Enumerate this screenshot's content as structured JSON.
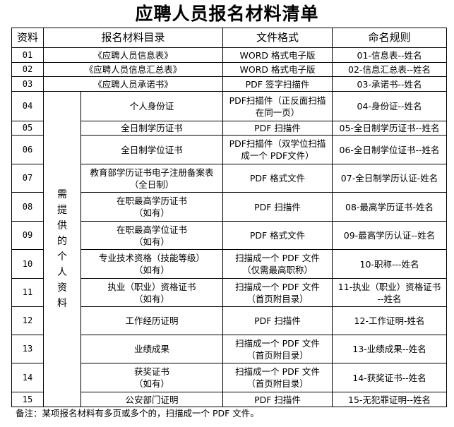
{
  "title": "应聘人员报名材料清单",
  "headers": [
    "资料",
    "报名材料目录",
    "文件格式",
    "命名规则"
  ],
  "group_label": "需\n提\n供\n的\n个\n人\n资\n料",
  "top_rows": [
    {
      "no": "01",
      "item": "《应聘人员信息表》",
      "format": "WORD 格式电子版",
      "naming": "01-信息表--姓名"
    },
    {
      "no": "02",
      "item": "《应聘人员信息汇总表》",
      "format": "WORD 格式电子版",
      "naming": "02-信息汇总表--姓名"
    },
    {
      "no": "03",
      "item": "《应聘人员承诺书》",
      "format": "PDF 签字扫描件",
      "naming": "03-承诺书--姓名"
    }
  ],
  "rows": [
    {
      "no": "04",
      "item": "个人身份证",
      "format": "PDF扫描件（正反面扫描\n在同一页）",
      "naming": "04-身份证--姓名"
    },
    {
      "no": "05",
      "item": "全日制学历证书",
      "format": "PDF 扫描件",
      "naming": "05-全日制学历证书--姓名"
    },
    {
      "no": "06",
      "item": "全日制学位证书",
      "format": "PDF扫描件（双学位扫描\n成一个 PDF文件）",
      "naming": "06-全日制学位证书--姓名"
    },
    {
      "no": "07",
      "item": "教育部学历证书电子注册备案表\n（全日制）",
      "format": "PDF 格式文件",
      "naming": "07-全日制学历认证-姓名"
    },
    {
      "no": "08",
      "item": "在职最高学历证书\n（如有）",
      "format": "PDF 扫描件",
      "naming": "08-最高学历证书-姓名"
    },
    {
      "no": "09",
      "item": "在职最高学位证书\n（如有）",
      "format": "PDF 格式文件",
      "naming": "09-最高学历认证--姓名"
    },
    {
      "no": "10",
      "item": "专业技术资格（技能等级）\n（如有）",
      "format": "扫描成一个 PDF 文件\n（仅需最高职称）",
      "naming": "10-职称---姓名"
    },
    {
      "no": "11",
      "item": "执业（职业）资格证书\n（如有）",
      "format": "扫描成一个 PDF 文件\n（首页附目录）",
      "naming": "11-执业（职业）资格证书\n--姓名"
    },
    {
      "no": "12",
      "item": "工作经历证明",
      "format": "PDF 扫描件",
      "naming": "12-工作证明-姓名"
    },
    {
      "no": "13",
      "item": "业绩成果",
      "format": "扫描成一个 PDF 文件\n（首页附目录）",
      "naming": "13-业绩成果--姓名"
    },
    {
      "no": "14",
      "item": "获奖证书\n（如有）",
      "format": "扫描成一个 PDF 文件\n（首页附目录）",
      "naming": "14-获奖证书--姓名"
    },
    {
      "no": "15",
      "item": "公安部门证明",
      "format": "PDF 扫描件",
      "naming": "15-无犯罪证明--姓名"
    }
  ],
  "note": "备注：某项报名材料有多页或多个的，扫描成一个 PDF 文件。"
}
